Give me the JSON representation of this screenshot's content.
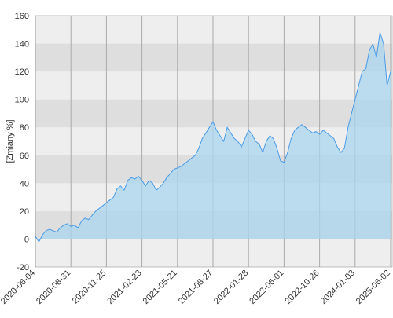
{
  "chart_data": {
    "type": "area",
    "y_label": "[Zmiany %]",
    "categories": [
      "2020-06-04",
      null,
      null,
      null,
      null,
      null,
      null,
      null,
      null,
      null,
      "2020-08-31",
      null,
      null,
      null,
      null,
      null,
      null,
      null,
      null,
      null,
      "2020-11-25",
      null,
      null,
      null,
      null,
      null,
      null,
      null,
      null,
      null,
      "2021-02-23",
      null,
      null,
      null,
      null,
      null,
      null,
      null,
      null,
      null,
      "2021-05-21",
      null,
      null,
      null,
      null,
      null,
      null,
      null,
      null,
      null,
      "2021-08-27",
      null,
      null,
      null,
      null,
      null,
      null,
      null,
      null,
      null,
      "2022-01-28",
      null,
      null,
      null,
      null,
      null,
      null,
      null,
      null,
      null,
      "2022-06-01",
      null,
      null,
      null,
      null,
      null,
      null,
      null,
      null,
      null,
      "2022-10-26",
      null,
      null,
      null,
      null,
      null,
      null,
      null,
      null,
      null,
      "2024-01-03",
      null,
      null,
      null,
      null,
      null,
      null,
      null,
      null,
      null,
      "2025-06-02"
    ],
    "series": [
      {
        "color": "#4a9be8",
        "fill": "#a9d5ee",
        "values": [
          2,
          -2,
          3,
          6,
          7,
          6,
          5,
          8,
          10,
          11,
          9,
          10,
          8,
          13,
          15,
          14,
          17,
          20,
          22,
          24,
          26,
          28,
          30,
          36,
          38,
          35,
          42,
          44,
          43,
          45,
          42,
          38,
          42,
          40,
          35,
          37,
          40,
          44,
          47,
          50,
          51,
          52,
          54,
          56,
          58,
          60,
          65,
          72,
          76,
          80,
          84,
          78,
          74,
          70,
          80,
          76,
          72,
          70,
          66,
          72,
          78,
          75,
          70,
          68,
          62,
          70,
          74,
          72,
          65,
          56,
          55,
          62,
          72,
          78,
          80,
          82,
          80,
          78,
          76,
          77,
          75,
          78,
          76,
          74,
          72,
          66,
          62,
          65,
          80,
          90,
          100,
          110,
          120,
          122,
          135,
          140,
          130,
          148,
          140,
          110,
          120
        ]
      }
    ],
    "ylim": [
      -20,
      160
    ],
    "yticks": [
      -20,
      0,
      20,
      40,
      60,
      80,
      100,
      120,
      140,
      160
    ],
    "grid": true
  }
}
